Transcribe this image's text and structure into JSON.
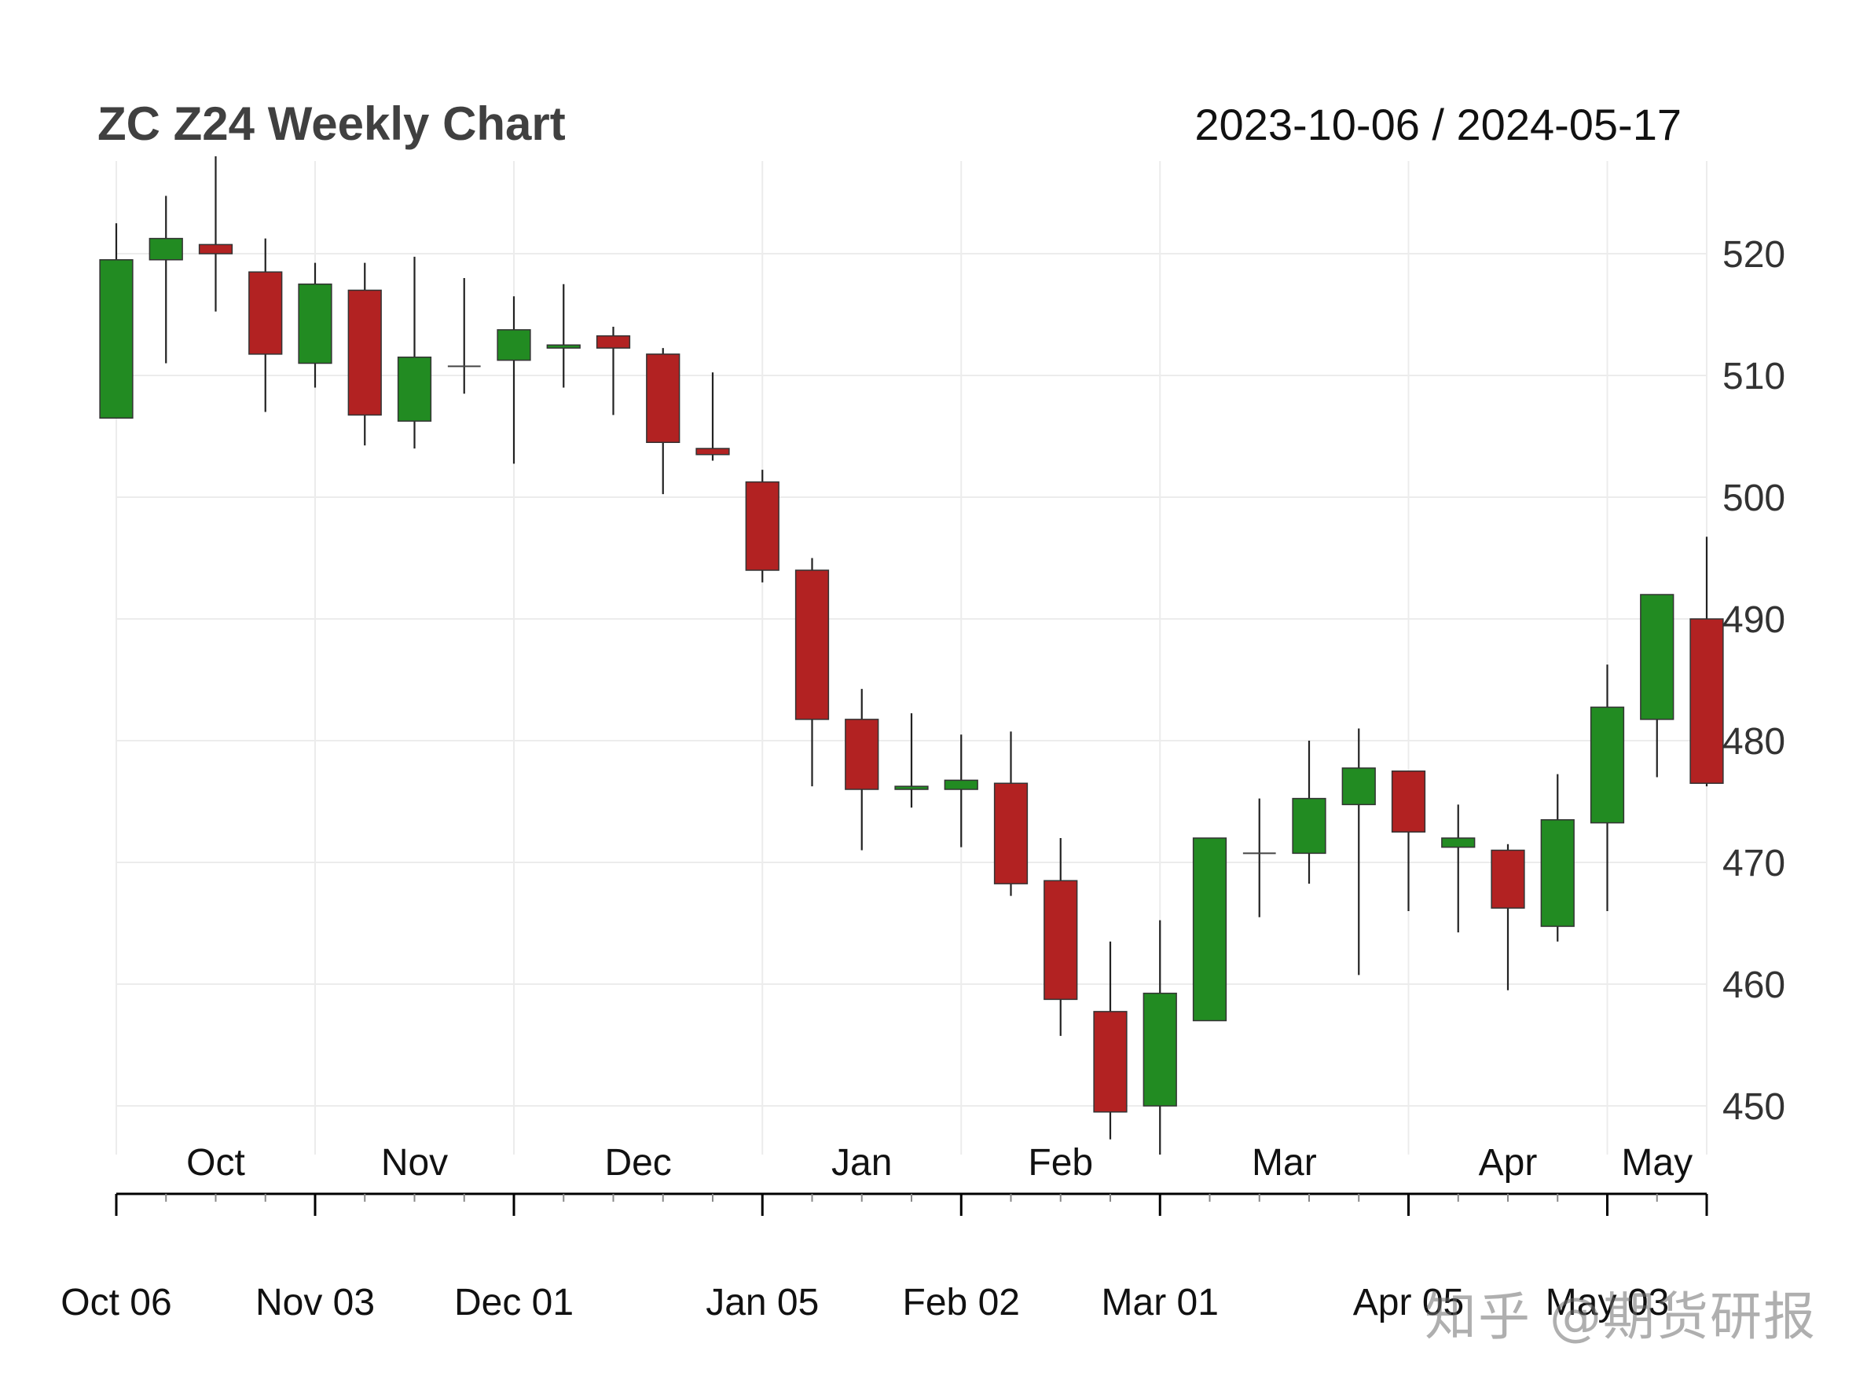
{
  "chart_data": {
    "type": "candlestick",
    "title": "ZC Z24 Weekly Chart",
    "date_range": "2023-10-06 / 2024-05-17",
    "ylim": [
      446,
      526
    ],
    "y_ticks": [
      450,
      460,
      470,
      480,
      490,
      500,
      510,
      520
    ],
    "up_color": "#228B22",
    "down_color": "#B22222",
    "month_labels": [
      {
        "label": "Oct",
        "pos": 2
      },
      {
        "label": "Nov",
        "pos": 6
      },
      {
        "label": "Dec",
        "pos": 10.5
      },
      {
        "label": "Jan",
        "pos": 15
      },
      {
        "label": "Feb",
        "pos": 19
      },
      {
        "label": "Mar",
        "pos": 23.5
      },
      {
        "label": "Apr",
        "pos": 28
      },
      {
        "label": "May",
        "pos": 31
      }
    ],
    "date_labels": [
      {
        "label": "Oct 06",
        "index": 0
      },
      {
        "label": "Nov 03",
        "index": 4
      },
      {
        "label": "Dec 01",
        "index": 8
      },
      {
        "label": "Jan 05",
        "index": 13
      },
      {
        "label": "Feb 02",
        "index": 17
      },
      {
        "label": "Mar 01",
        "index": 21
      },
      {
        "label": "Apr 05",
        "index": 26
      },
      {
        "label": "May 03",
        "index": 30
      }
    ],
    "candles": [
      {
        "date": "2023-10-06",
        "open": 506.5,
        "high": 522.5,
        "low": 506.5,
        "close": 519.5
      },
      {
        "date": "2023-10-13",
        "open": 519.5,
        "high": 524.75,
        "low": 511.0,
        "close": 521.25
      },
      {
        "date": "2023-10-20",
        "open": 520.75,
        "high": 528.0,
        "low": 515.25,
        "close": 520.0
      },
      {
        "date": "2023-10-27",
        "open": 518.5,
        "high": 521.25,
        "low": 507.0,
        "close": 511.75
      },
      {
        "date": "2023-11-03",
        "open": 511.0,
        "high": 519.25,
        "low": 509.0,
        "close": 517.5
      },
      {
        "date": "2023-11-10",
        "open": 517.0,
        "high": 519.25,
        "low": 504.25,
        "close": 506.75
      },
      {
        "date": "2023-11-17",
        "open": 506.25,
        "high": 519.75,
        "low": 504.0,
        "close": 511.5
      },
      {
        "date": "2023-11-24",
        "open": 510.75,
        "high": 518.0,
        "low": 508.5,
        "close": 510.75
      },
      {
        "date": "2023-12-01",
        "open": 511.25,
        "high": 516.5,
        "low": 502.75,
        "close": 513.75
      },
      {
        "date": "2023-12-08",
        "open": 512.25,
        "high": 517.5,
        "low": 509.0,
        "close": 512.5
      },
      {
        "date": "2023-12-15",
        "open": 513.25,
        "high": 514.0,
        "low": 506.75,
        "close": 512.25
      },
      {
        "date": "2023-12-22",
        "open": 511.75,
        "high": 512.25,
        "low": 500.25,
        "close": 504.5
      },
      {
        "date": "2023-12-29",
        "open": 504.0,
        "high": 510.25,
        "low": 503.0,
        "close": 503.5
      },
      {
        "date": "2024-01-05",
        "open": 501.25,
        "high": 502.25,
        "low": 493.0,
        "close": 494.0
      },
      {
        "date": "2024-01-12",
        "open": 494.0,
        "high": 495.0,
        "low": 476.25,
        "close": 481.75
      },
      {
        "date": "2024-01-19",
        "open": 481.75,
        "high": 484.25,
        "low": 471.0,
        "close": 476.0
      },
      {
        "date": "2024-01-26",
        "open": 476.0,
        "high": 482.25,
        "low": 474.5,
        "close": 476.25
      },
      {
        "date": "2024-02-02",
        "open": 476.0,
        "high": 480.5,
        "low": 471.25,
        "close": 476.75
      },
      {
        "date": "2024-02-09",
        "open": 476.5,
        "high": 480.75,
        "low": 467.25,
        "close": 468.25
      },
      {
        "date": "2024-02-16",
        "open": 468.5,
        "high": 472.0,
        "low": 455.75,
        "close": 458.75
      },
      {
        "date": "2024-02-23",
        "open": 457.75,
        "high": 463.5,
        "low": 447.25,
        "close": 449.5
      },
      {
        "date": "2024-03-01",
        "open": 450.0,
        "high": 465.25,
        "low": 446.0,
        "close": 459.25
      },
      {
        "date": "2024-03-08",
        "open": 457.0,
        "high": 472.0,
        "low": 457.0,
        "close": 472.0
      },
      {
        "date": "2024-03-15",
        "open": 470.75,
        "high": 475.25,
        "low": 465.5,
        "close": 470.75
      },
      {
        "date": "2024-03-22",
        "open": 470.75,
        "high": 480.0,
        "low": 468.25,
        "close": 475.25
      },
      {
        "date": "2024-03-28",
        "open": 474.75,
        "high": 481.0,
        "low": 460.75,
        "close": 477.75
      },
      {
        "date": "2024-04-05",
        "open": 477.5,
        "high": 477.5,
        "low": 466.0,
        "close": 472.5
      },
      {
        "date": "2024-04-12",
        "open": 471.25,
        "high": 474.75,
        "low": 464.25,
        "close": 472.0
      },
      {
        "date": "2024-04-19",
        "open": 471.0,
        "high": 471.5,
        "low": 459.5,
        "close": 466.25
      },
      {
        "date": "2024-04-26",
        "open": 464.75,
        "high": 477.25,
        "low": 463.5,
        "close": 473.5
      },
      {
        "date": "2024-05-03",
        "open": 473.25,
        "high": 486.25,
        "low": 466.0,
        "close": 482.75
      },
      {
        "date": "2024-05-10",
        "open": 481.75,
        "high": 492.0,
        "low": 477.0,
        "close": 492.0
      },
      {
        "date": "2024-05-17",
        "open": 490.0,
        "high": 496.75,
        "low": 476.25,
        "close": 476.5
      }
    ]
  },
  "watermark": "知乎 @期货研报"
}
